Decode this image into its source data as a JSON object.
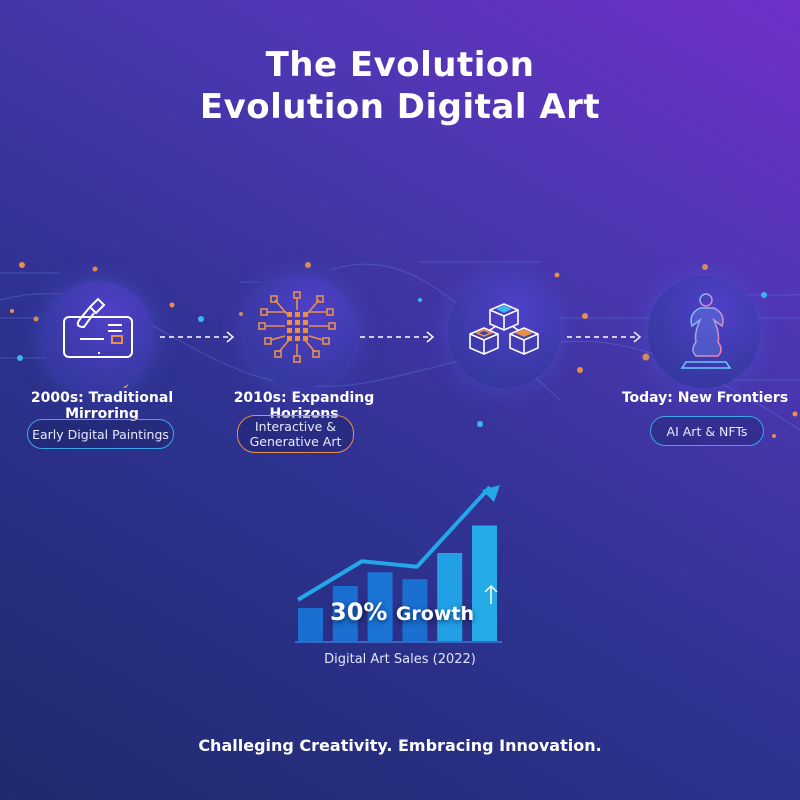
{
  "title": {
    "line1": "The Evolution",
    "line2": "Evolution Digital Art"
  },
  "stages": [
    {
      "title": "2000s: Traditional Mirroring",
      "pill": "Early Digital Paintings",
      "icon": "tablet-brush-icon",
      "pill_color": "#3aa6e8"
    },
    {
      "title": "2010s: Expanding Horizons",
      "pill_line1": "Interactive &",
      "pill_line2": "Generative Art",
      "icon": "circuit-chip-icon",
      "pill_color": "#e8904a"
    },
    {
      "title": "",
      "icon": "blockchain-cubes-icon"
    },
    {
      "title": "Today: New Frontiers",
      "pill": "AI Art & NFTs",
      "icon": "holographic-sculpture-icon",
      "pill_color": "#3aa6e8"
    }
  ],
  "chart_data": {
    "type": "bar",
    "values": [
      1.2,
      2.0,
      2.5,
      2.25,
      3.2,
      4.2
    ],
    "trend_line": [
      1.5,
      2.9,
      2.7,
      5.6
    ],
    "annotation": "30% Growth",
    "caption": "Digital Art Sales (2022)",
    "bar_colors": [
      "#1a6fd0",
      "#1a6fd0",
      "#1a74d6",
      "#1a6fd0",
      "#22a0e6",
      "#25abe8"
    ],
    "line_color": "#22a8e8"
  },
  "growth": {
    "number": "30%",
    "word": "Growth"
  },
  "tagline": "Challeging Creativity. Embracing Innovation.",
  "colors": {
    "accent_blue": "#3aa6e8",
    "accent_orange": "#e8904a"
  }
}
